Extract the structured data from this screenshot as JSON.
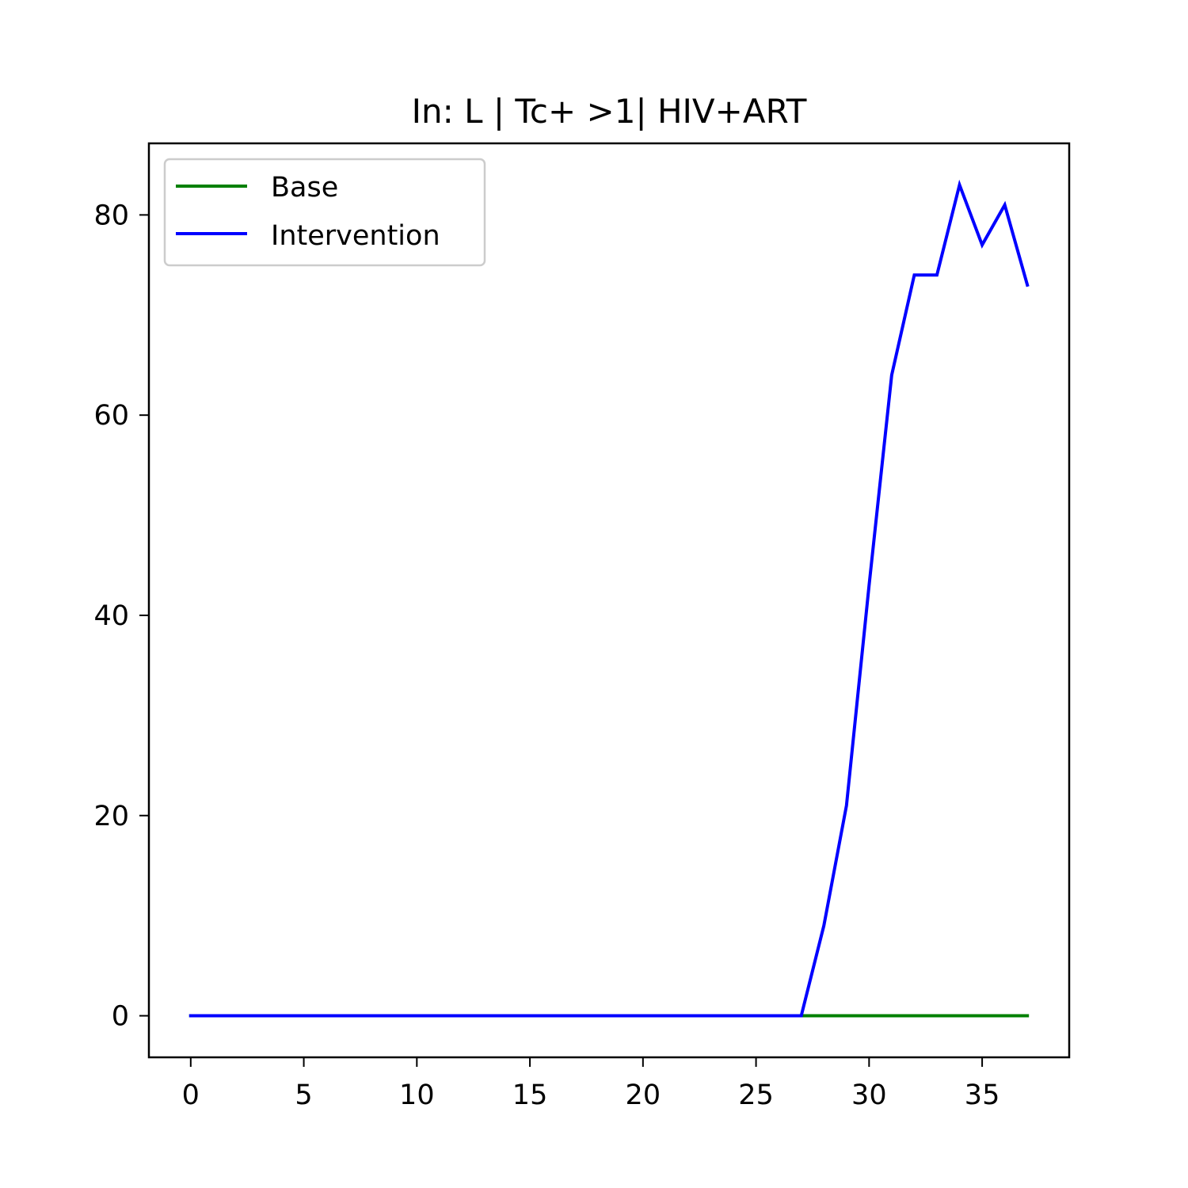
{
  "chart_data": {
    "type": "line",
    "title": "In: L | Tc+ >1| HIV+ART",
    "xlabel": "",
    "ylabel": "",
    "xlim": [
      -1.85,
      38.85
    ],
    "ylim": [
      -4.15,
      87.15
    ],
    "x_ticks": [
      0,
      5,
      10,
      15,
      20,
      25,
      30,
      35
    ],
    "y_ticks": [
      0,
      20,
      40,
      60,
      80
    ],
    "grid": false,
    "legend_position": "top-left",
    "x": [
      0,
      1,
      2,
      3,
      4,
      5,
      6,
      7,
      8,
      9,
      10,
      11,
      12,
      13,
      14,
      15,
      16,
      17,
      18,
      19,
      20,
      21,
      22,
      23,
      24,
      25,
      26,
      27,
      28,
      29,
      30,
      31,
      32,
      33,
      34,
      35,
      36,
      37
    ],
    "series": [
      {
        "name": "Base",
        "color": "#008000",
        "values": [
          0,
          0,
          0,
          0,
          0,
          0,
          0,
          0,
          0,
          0,
          0,
          0,
          0,
          0,
          0,
          0,
          0,
          0,
          0,
          0,
          0,
          0,
          0,
          0,
          0,
          0,
          0,
          0,
          0,
          0,
          0,
          0,
          0,
          0,
          0,
          0,
          0,
          0
        ]
      },
      {
        "name": "Intervention",
        "color": "#0000ff",
        "values": [
          0,
          0,
          0,
          0,
          0,
          0,
          0,
          0,
          0,
          0,
          0,
          0,
          0,
          0,
          0,
          0,
          0,
          0,
          0,
          0,
          0,
          0,
          0,
          0,
          0,
          0,
          0,
          0,
          9,
          21,
          43,
          64,
          74,
          74,
          83,
          77,
          81,
          73
        ]
      }
    ]
  }
}
